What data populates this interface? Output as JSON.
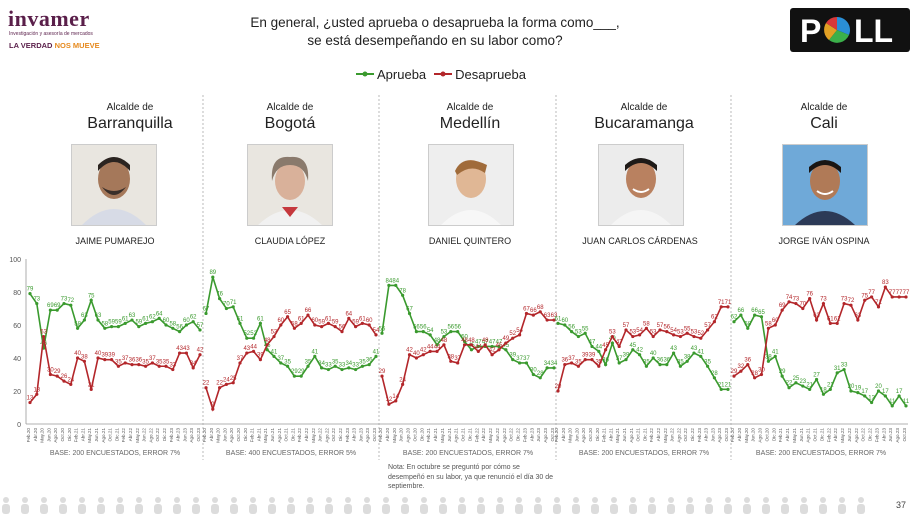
{
  "logo": {
    "brand": "invamer",
    "tagline": "Investigación y asesoría de mercados",
    "motto_a": "LA VERDAD",
    "motto_b": "NOS MUEVE"
  },
  "question": {
    "line1": "En general, ¿usted aprueba o desaprueba la forma como___,",
    "line2": "se está desempeñando en su labor como?"
  },
  "poll_logo": {
    "text": "POLL"
  },
  "legend": {
    "aprueba": "Aprueba",
    "desaprueba": "Desaprueba"
  },
  "colors": {
    "aprueba": "#3a9a2e",
    "desaprueba": "#b3262a"
  },
  "panels": [
    {
      "pre": "Alcalde de",
      "city": "Barranquilla",
      "name": "JAIME PUMAREJO",
      "base": "BASE: 200 ENCUESTADOS, ERROR 7%"
    },
    {
      "pre": "Alcalde de",
      "city": "Bogotá",
      "name": "CLAUDIA LÓPEZ",
      "base": "BASE: 400 ENCUESTADOS, ERROR 5%"
    },
    {
      "pre": "Alcalde de",
      "city": "Medellín",
      "name": "DANIEL QUINTERO",
      "base": "BASE: 200 ENCUESTADOS, ERROR 7%"
    },
    {
      "pre": "Alcalde de",
      "city": "Bucaramanga",
      "name": "JUAN CARLOS CÁRDENAS",
      "base": "BASE: 200 ENCUESTADOS, ERROR 7%"
    },
    {
      "pre": "Alcalde de",
      "city": "Cali",
      "name": "JORGE IVÁN OSPINA",
      "base": "BASE: 200 ENCUESTADOS, ERROR 7%"
    }
  ],
  "note": "Nota: En octubre se preguntó por cómo se desempeñó en su labor, ya que renunció el día 30 de septiembre.",
  "page_number": "37",
  "chart_data": {
    "type": "line",
    "ylim": [
      0,
      100
    ],
    "yticks": [
      0,
      20,
      40,
      60,
      80,
      100
    ],
    "grid": false,
    "legend_position": "top-center",
    "panels": [
      {
        "x": [
          "Feb.20",
          "Abr.20",
          "May.20",
          "Jun.20",
          "Ago.20",
          "Oct.20",
          "Dic.20",
          "Feb.21",
          "Abr.21",
          "May.21",
          "Jun.21",
          "Ago.21",
          "Oct.21",
          "Dic.21",
          "Feb.22",
          "Abr.22",
          "May.22",
          "Jun.22",
          "Ago.22",
          "Oct.22",
          "Dic.22",
          "Feb.23",
          "Abr.23",
          "Jun.23",
          "Ago.23",
          "Oct.23"
        ],
        "series": [
          {
            "name": "Aprueba",
            "values": [
              79,
              73,
              46,
              69,
              69,
              73,
              72,
              58,
              63,
              75,
              63,
              58,
              59,
              59,
              61,
              63,
              59,
              61,
              62,
              64,
              60,
              58,
              56,
              60,
              62,
              57
            ]
          },
          {
            "name": "Desaprueba",
            "values": [
              13,
              18,
              53,
              30,
              29,
              26,
              24,
              40,
              38,
              21,
              40,
              39,
              39,
              35,
              37,
              36,
              36,
              35,
              37,
              35,
              35,
              33,
              43,
              43,
              34,
              42
            ]
          }
        ]
      },
      {
        "x": [
          "Feb.20",
          "Abr.20",
          "May.20",
          "Jun.20",
          "Ago.20",
          "Oct.20",
          "Dic.20",
          "Feb.21",
          "Abr.21",
          "May.21",
          "Jun.21",
          "Ago.21",
          "Oct.21",
          "Dic.21",
          "Feb.22",
          "Abr.22",
          "May.22",
          "Jun.22",
          "Ago.22",
          "Oct.22",
          "Dic.22",
          "Feb.23",
          "Abr.23",
          "Jun.23",
          "Ago.23",
          "Oct.23"
        ],
        "series": [
          {
            "name": "Aprueba",
            "values": [
              67,
              89,
              76,
              70,
              71,
              61,
              52,
              52,
              61,
              45,
              41,
              37,
              35,
              29,
              29,
              35,
              41,
              34,
              33,
              35,
              33,
              34,
              33,
              35,
              36,
              41
            ]
          },
          {
            "name": "Desaprueba",
            "values": [
              22,
              9,
              22,
              24,
              25,
              37,
              43,
              44,
              39,
              48,
              53,
              60,
              65,
              58,
              61,
              66,
              60,
              59,
              61,
              59,
              56,
              64,
              59,
              61,
              60,
              54
            ]
          }
        ]
      },
      {
        "x": [
          "Feb.20",
          "Abr.20",
          "May.20",
          "Jun.20",
          "Ago.20",
          "Oct.20",
          "Dic.20",
          "Feb.21",
          "Abr.21",
          "May.21",
          "Jun.21",
          "Ago.21",
          "Oct.21",
          "Dic.21",
          "Feb.22",
          "Abr.22",
          "May.22",
          "Jun.22",
          "Ago.22",
          "Oct.22",
          "Dic.22",
          "Feb.23",
          "Abr.23",
          "Jun.23",
          "Ago.23",
          "Oct.23"
        ],
        "series": [
          {
            "name": "Aprueba",
            "values": [
              55,
              84,
              84,
              78,
              67,
              56,
              56,
              54,
              48,
              53,
              56,
              56,
              50,
              45,
              47,
              47,
              47,
              47,
              45,
              39,
              37,
              37,
              30,
              28,
              34,
              34
            ]
          },
          {
            "name": "Desaprueba",
            "values": [
              29,
              12,
              14,
              24,
              42,
              40,
              42,
              44,
              44,
              48,
              38,
              37,
              48,
              48,
              44,
              48,
              42,
              45,
              49,
              52,
              54,
              67,
              66,
              68,
              63,
              63
            ]
          }
        ]
      },
      {
        "x": [
          "Feb.20",
          "Abr.20",
          "May.20",
          "Jun.20",
          "Ago.20",
          "Oct.20",
          "Dic.20",
          "Feb.21",
          "Abr.21",
          "May.21",
          "Jun.21",
          "Ago.21",
          "Oct.21",
          "Dic.21",
          "Feb.22",
          "Abr.22",
          "May.22",
          "Jun.22",
          "Ago.22",
          "Oct.22",
          "Dic.22",
          "Feb.23",
          "Abr.23",
          "Jun.23",
          "Ago.23",
          "Oct.23"
        ],
        "series": [
          {
            "name": "Aprueba",
            "values": [
              61,
              60,
              56,
              53,
              55,
              47,
              44,
              36,
              49,
              37,
              39,
              45,
              42,
              35,
              40,
              36,
              36,
              43,
              35,
              38,
              43,
              41,
              35,
              28,
              21,
              21
            ]
          },
          {
            "name": "Desaprueba",
            "values": [
              20,
              36,
              37,
              35,
              39,
              39,
              35,
              45,
              53,
              47,
              57,
              53,
              54,
              58,
              53,
              57,
              56,
              54,
              53,
              55,
              53,
              52,
              57,
              62,
              71,
              71
            ]
          }
        ]
      },
      {
        "x": [
          "Feb.20",
          "Abr.20",
          "May.20",
          "Jun.20",
          "Ago.20",
          "Oct.20",
          "Dic.20",
          "Feb.21",
          "Abr.21",
          "May.21",
          "Jun.21",
          "Ago.21",
          "Oct.21",
          "Dic.21",
          "Feb.22",
          "Abr.22",
          "May.22",
          "Jun.22",
          "Ago.22",
          "Oct.22",
          "Dic.22",
          "Feb.23",
          "Abr.23",
          "Jun.23",
          "Ago.23",
          "Oct.23"
        ],
        "series": [
          {
            "name": "Aprueba",
            "values": [
              62,
              66,
              58,
              66,
              65,
              38,
              41,
              29,
              22,
              25,
              23,
              21,
              27,
              18,
              21,
              31,
              33,
              20,
              19,
              17,
              13,
              20,
              17,
              11,
              17,
              11
            ]
          },
          {
            "name": "Desaprueba",
            "values": [
              29,
              32,
              36,
              28,
              30,
              58,
              60,
              69,
              74,
              73,
              70,
              76,
              63,
              73,
              61,
              61,
              73,
              72,
              63,
              75,
              77,
              71,
              83,
              77,
              77,
              77
            ]
          }
        ]
      }
    ]
  }
}
